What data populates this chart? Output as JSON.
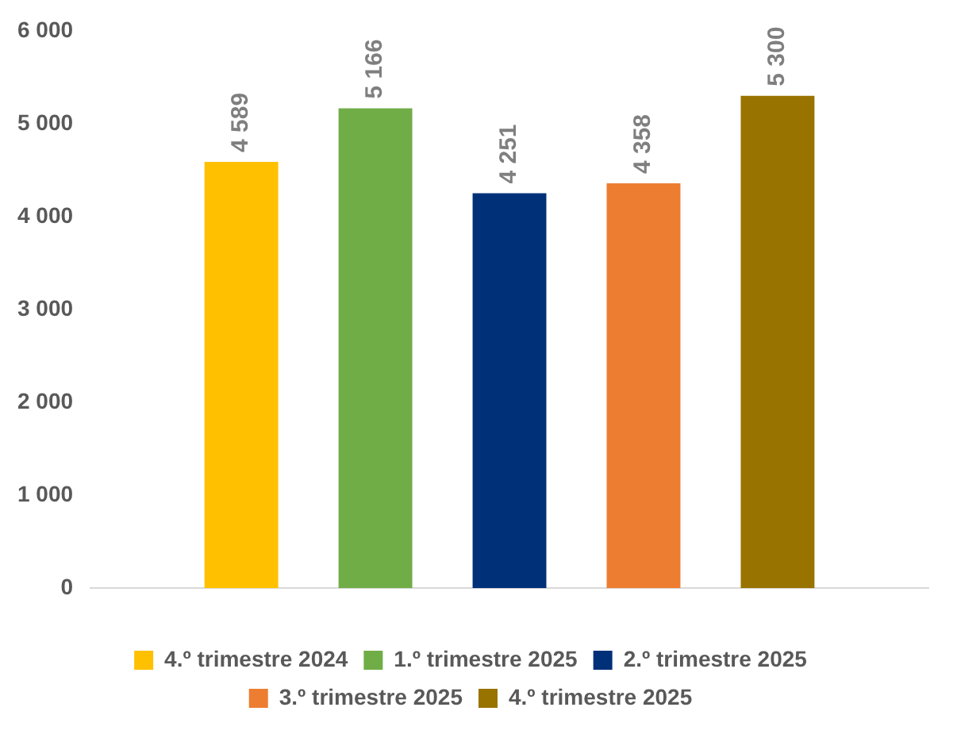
{
  "chart_data": {
    "type": "bar",
    "categories": [
      null
    ],
    "series": [
      {
        "name": "4.º trimestre 2024",
        "color": "#ffc000",
        "values": [
          4589
        ],
        "value_labels": [
          "4 589"
        ]
      },
      {
        "name": "1.º trimestre 2025",
        "color": "#70ad47",
        "values": [
          5166
        ],
        "value_labels": [
          "5 166"
        ]
      },
      {
        "name": "2.º trimestre 2025",
        "color": "#003078",
        "values": [
          4251
        ],
        "value_labels": [
          "4 251"
        ]
      },
      {
        "name": "3.º trimestre 2025",
        "color": "#ed7d31",
        "values": [
          4358
        ],
        "value_labels": [
          "4 358"
        ]
      },
      {
        "name": "4.º trimestre 2025",
        "color": "#997300",
        "values": [
          5300
        ],
        "value_labels": [
          "5 300"
        ]
      }
    ],
    "ylim": [
      0,
      6000
    ],
    "yticks": [
      {
        "value": 0,
        "label": "0"
      },
      {
        "value": 1000,
        "label": "1 000"
      },
      {
        "value": 2000,
        "label": "2 000"
      },
      {
        "value": 3000,
        "label": "3 000"
      },
      {
        "value": 4000,
        "label": "4 000"
      },
      {
        "value": 5000,
        "label": "5 000"
      },
      {
        "value": 6000,
        "label": "6 000"
      }
    ],
    "grid": false,
    "legend": "bottom"
  }
}
